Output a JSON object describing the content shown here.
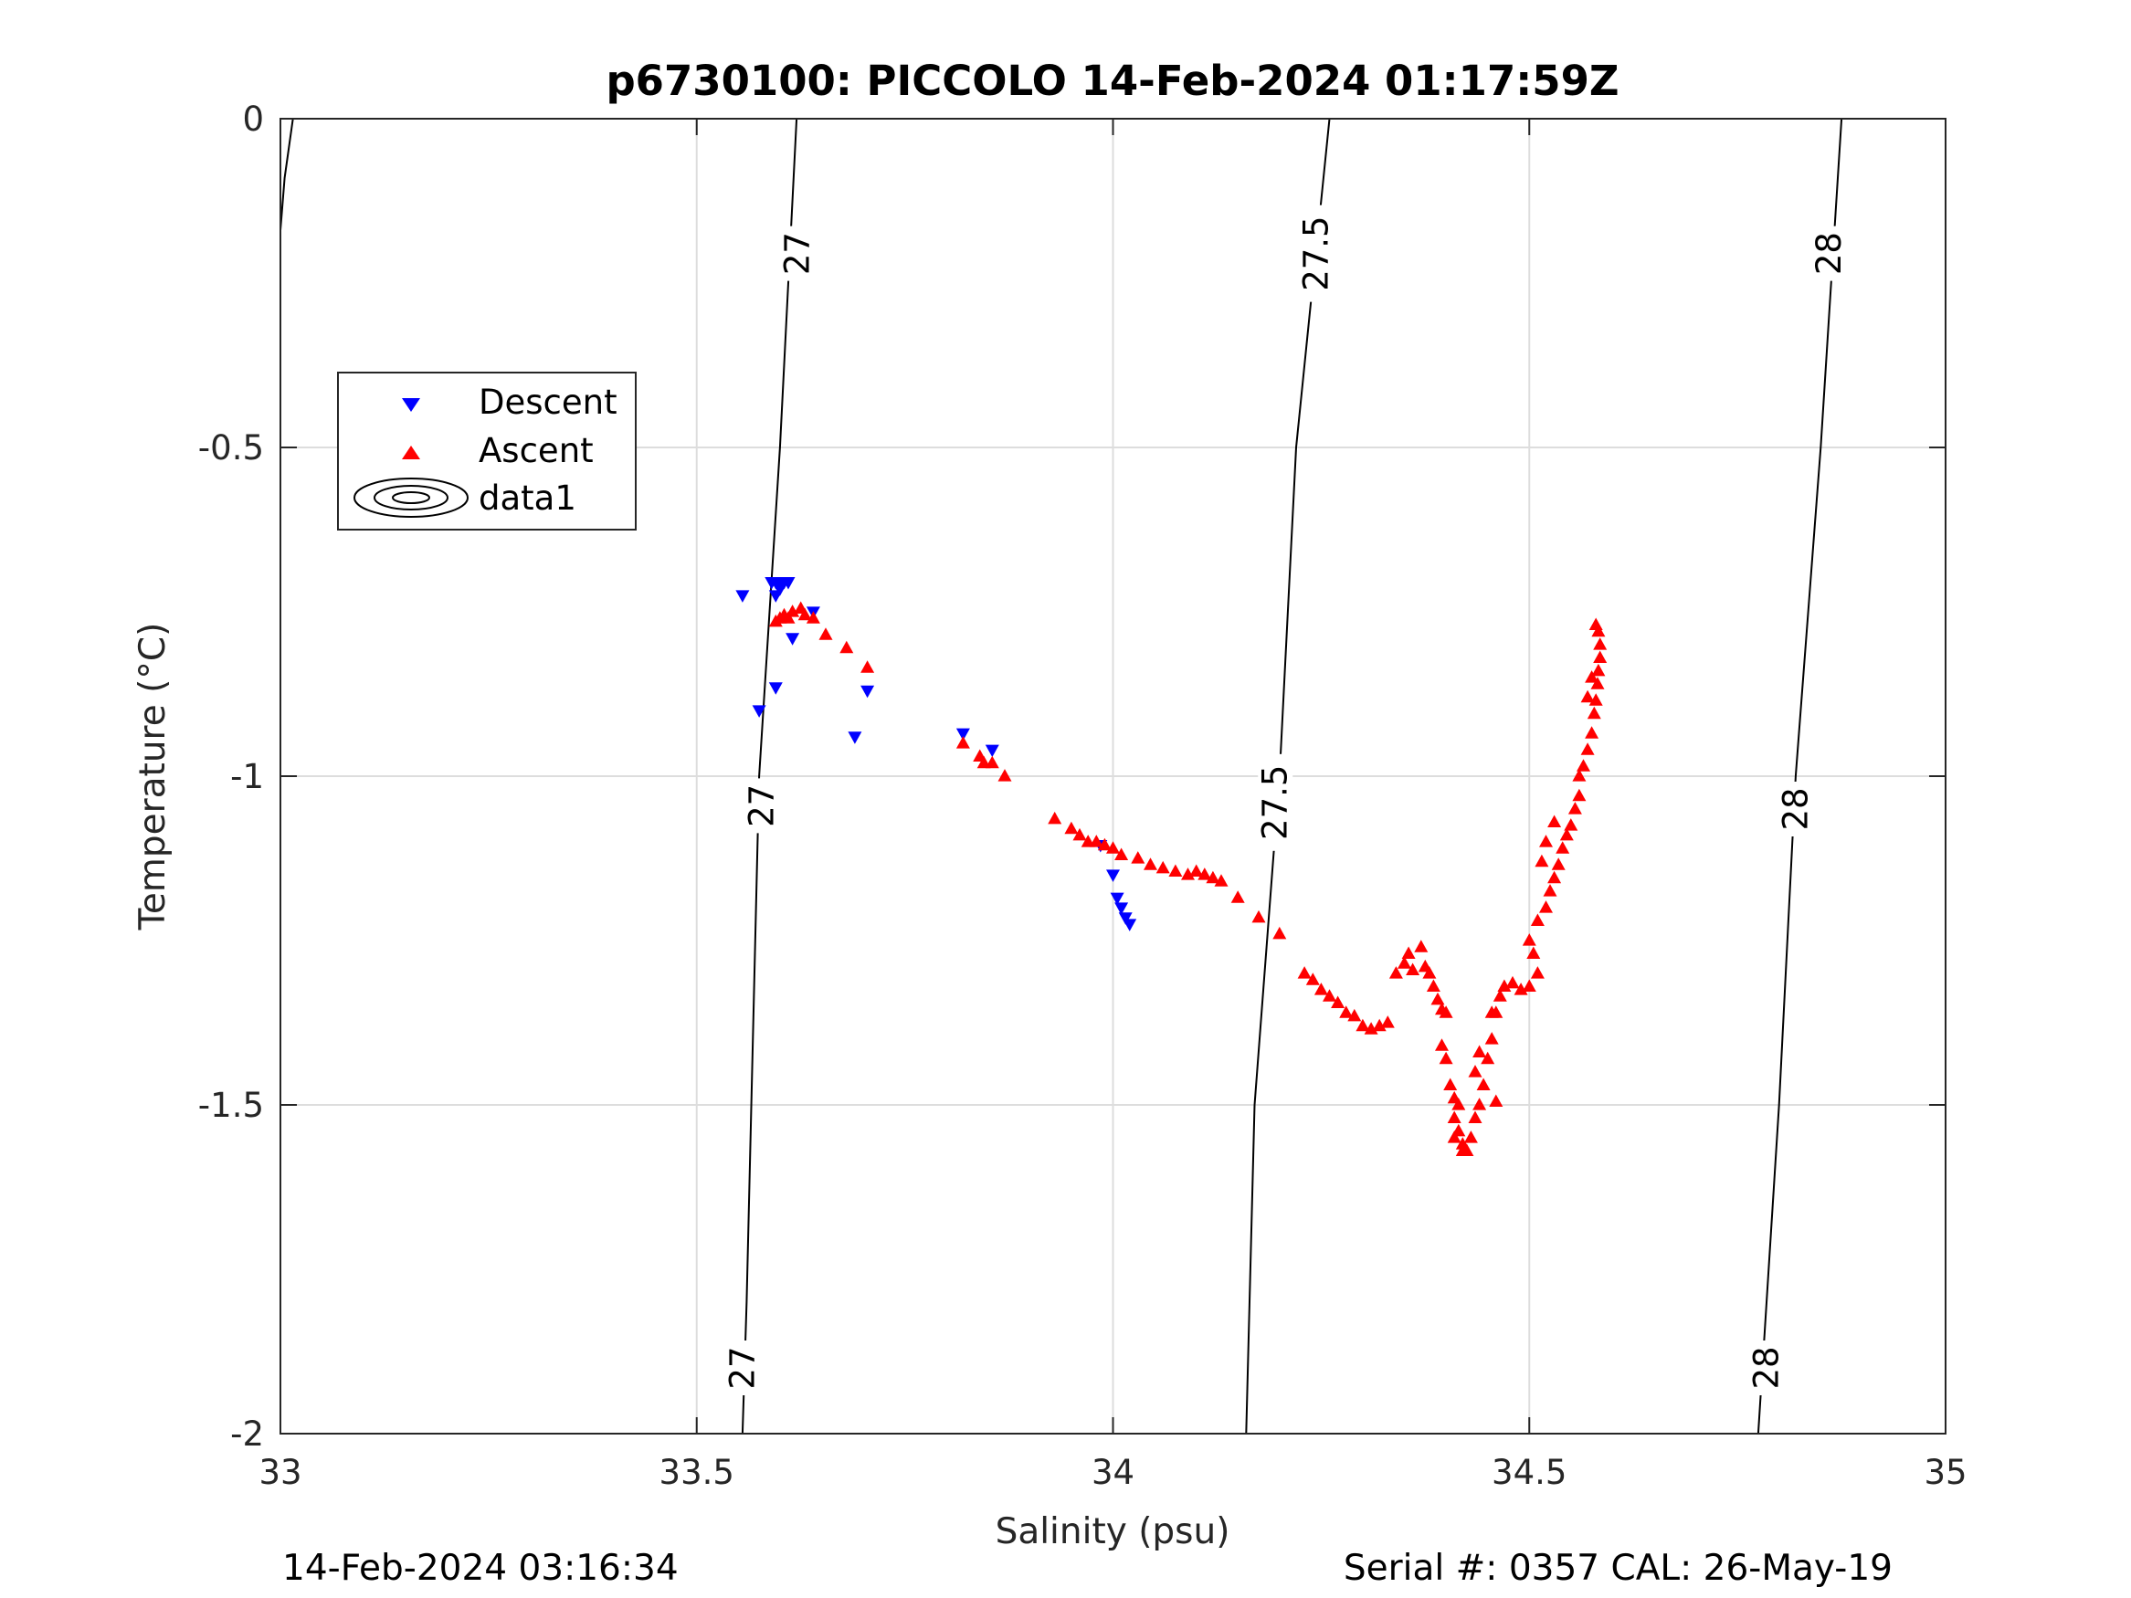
{
  "chart_data": {
    "type": "scatter",
    "title": "p6730100: PICCOLO 14-Feb-2024 01:17:59Z",
    "xlabel": "Salinity (psu)",
    "ylabel": "Temperature (°C)",
    "xlim": [
      33,
      35
    ],
    "ylim": [
      -2,
      0
    ],
    "xticks": [
      33,
      33.5,
      34,
      34.5,
      35
    ],
    "xtick_labels": [
      "33",
      "33.5",
      "34",
      "34.5",
      "35"
    ],
    "yticks": [
      -2,
      -1.5,
      -1,
      -0.5,
      0
    ],
    "ytick_labels": [
      "-2",
      "-1.5",
      "-1",
      "-0.5",
      "0"
    ],
    "grid": true,
    "legend_position": "upper-left",
    "legend": [
      "Descent",
      "Ascent",
      "data1"
    ],
    "colors": {
      "descent": "#0000ff",
      "ascent": "#ff0000",
      "contour": "#000000",
      "grid": "#dddddd"
    },
    "series": [
      {
        "name": "Descent",
        "marker": "triangle-down",
        "color": "#0000ff",
        "points": [
          [
            33.555,
            -0.725
          ],
          [
            33.59,
            -0.705
          ],
          [
            33.595,
            -0.705
          ],
          [
            33.6,
            -0.71
          ],
          [
            33.605,
            -0.705
          ],
          [
            33.61,
            -0.705
          ],
          [
            33.595,
            -0.725
          ],
          [
            33.6,
            -0.715
          ],
          [
            33.615,
            -0.79
          ],
          [
            33.64,
            -0.75
          ],
          [
            33.595,
            -0.865
          ],
          [
            33.575,
            -0.9
          ],
          [
            33.69,
            -0.94
          ],
          [
            33.705,
            -0.87
          ],
          [
            33.82,
            -0.935
          ],
          [
            33.855,
            -0.96
          ],
          [
            33.985,
            -1.105
          ],
          [
            34.0,
            -1.15
          ],
          [
            34.005,
            -1.185
          ],
          [
            34.01,
            -1.2
          ],
          [
            34.015,
            -1.215
          ],
          [
            34.02,
            -1.225
          ]
        ]
      },
      {
        "name": "Ascent",
        "marker": "triangle-up",
        "color": "#ff0000",
        "points": [
          [
            33.595,
            -0.765
          ],
          [
            33.6,
            -0.76
          ],
          [
            33.605,
            -0.755
          ],
          [
            33.61,
            -0.76
          ],
          [
            33.615,
            -0.75
          ],
          [
            33.625,
            -0.745
          ],
          [
            33.63,
            -0.755
          ],
          [
            33.64,
            -0.76
          ],
          [
            33.655,
            -0.785
          ],
          [
            33.68,
            -0.805
          ],
          [
            33.705,
            -0.835
          ],
          [
            33.82,
            -0.95
          ],
          [
            33.84,
            -0.97
          ],
          [
            33.845,
            -0.98
          ],
          [
            33.855,
            -0.98
          ],
          [
            33.87,
            -1.0
          ],
          [
            33.93,
            -1.065
          ],
          [
            33.95,
            -1.08
          ],
          [
            33.96,
            -1.09
          ],
          [
            33.97,
            -1.1
          ],
          [
            33.98,
            -1.1
          ],
          [
            33.99,
            -1.105
          ],
          [
            34.0,
            -1.11
          ],
          [
            34.01,
            -1.12
          ],
          [
            34.03,
            -1.125
          ],
          [
            34.045,
            -1.135
          ],
          [
            34.06,
            -1.14
          ],
          [
            34.075,
            -1.145
          ],
          [
            34.09,
            -1.15
          ],
          [
            34.1,
            -1.145
          ],
          [
            34.11,
            -1.15
          ],
          [
            34.12,
            -1.155
          ],
          [
            34.13,
            -1.16
          ],
          [
            34.15,
            -1.185
          ],
          [
            34.175,
            -1.215
          ],
          [
            34.2,
            -1.24
          ],
          [
            34.23,
            -1.3
          ],
          [
            34.24,
            -1.31
          ],
          [
            34.25,
            -1.325
          ],
          [
            34.26,
            -1.335
          ],
          [
            34.27,
            -1.345
          ],
          [
            34.28,
            -1.36
          ],
          [
            34.29,
            -1.365
          ],
          [
            34.3,
            -1.38
          ],
          [
            34.31,
            -1.385
          ],
          [
            34.32,
            -1.38
          ],
          [
            34.33,
            -1.375
          ],
          [
            34.34,
            -1.3
          ],
          [
            34.35,
            -1.285
          ],
          [
            34.355,
            -1.27
          ],
          [
            34.36,
            -1.295
          ],
          [
            34.37,
            -1.26
          ],
          [
            34.375,
            -1.29
          ],
          [
            34.38,
            -1.3
          ],
          [
            34.385,
            -1.32
          ],
          [
            34.39,
            -1.34
          ],
          [
            34.395,
            -1.355
          ],
          [
            34.4,
            -1.36
          ],
          [
            34.395,
            -1.41
          ],
          [
            34.4,
            -1.43
          ],
          [
            34.405,
            -1.47
          ],
          [
            34.41,
            -1.49
          ],
          [
            34.41,
            -1.52
          ],
          [
            34.415,
            -1.54
          ],
          [
            34.42,
            -1.56
          ],
          [
            34.425,
            -1.57
          ],
          [
            34.43,
            -1.55
          ],
          [
            34.435,
            -1.52
          ],
          [
            34.44,
            -1.5
          ],
          [
            34.445,
            -1.47
          ],
          [
            34.45,
            -1.43
          ],
          [
            34.455,
            -1.4
          ],
          [
            34.46,
            -1.36
          ],
          [
            34.465,
            -1.335
          ],
          [
            34.47,
            -1.32
          ],
          [
            34.48,
            -1.315
          ],
          [
            34.49,
            -1.325
          ],
          [
            34.5,
            -1.32
          ],
          [
            34.51,
            -1.3
          ],
          [
            34.505,
            -1.27
          ],
          [
            34.5,
            -1.25
          ],
          [
            34.51,
            -1.22
          ],
          [
            34.52,
            -1.2
          ],
          [
            34.525,
            -1.175
          ],
          [
            34.53,
            -1.155
          ],
          [
            34.535,
            -1.135
          ],
          [
            34.54,
            -1.11
          ],
          [
            34.545,
            -1.09
          ],
          [
            34.55,
            -1.075
          ],
          [
            34.555,
            -1.05
          ],
          [
            34.56,
            -1.03
          ],
          [
            34.56,
            -1.0
          ],
          [
            34.565,
            -0.985
          ],
          [
            34.57,
            -0.96
          ],
          [
            34.575,
            -0.935
          ],
          [
            34.578,
            -0.905
          ],
          [
            34.58,
            -0.885
          ],
          [
            34.582,
            -0.86
          ],
          [
            34.583,
            -0.84
          ],
          [
            34.585,
            -0.82
          ],
          [
            34.585,
            -0.8
          ],
          [
            34.583,
            -0.78
          ],
          [
            34.58,
            -0.77
          ],
          [
            34.575,
            -0.85
          ],
          [
            34.57,
            -0.88
          ],
          [
            34.52,
            -1.1
          ],
          [
            34.515,
            -1.13
          ],
          [
            34.53,
            -1.07
          ],
          [
            34.46,
            -1.495
          ],
          [
            34.455,
            -1.36
          ],
          [
            34.42,
            -1.57
          ],
          [
            34.41,
            -1.55
          ],
          [
            34.415,
            -1.5
          ],
          [
            34.435,
            -1.45
          ],
          [
            34.44,
            -1.42
          ]
        ]
      }
    ],
    "contours": [
      {
        "level": "27",
        "points": [
          [
            33.555,
            -2.0
          ],
          [
            33.56,
            -1.8
          ],
          [
            33.575,
            -1.0
          ],
          [
            33.6,
            -0.5
          ],
          [
            33.62,
            0.0
          ]
        ],
        "labels": [
          {
            "text": "27",
            "x": 33.555,
            "y": -1.9
          },
          {
            "text": "27",
            "x": 33.578,
            "y": -1.045
          },
          {
            "text": "27",
            "x": 33.621,
            "y": -0.205
          }
        ]
      },
      {
        "level": "27.5",
        "points": [
          [
            34.16,
            -2.0
          ],
          [
            34.17,
            -1.5
          ],
          [
            34.2,
            -1.0
          ],
          [
            34.22,
            -0.5
          ],
          [
            34.26,
            0.0
          ]
        ],
        "labels": [
          {
            "text": "27.5",
            "x": 34.195,
            "y": -1.04
          },
          {
            "text": "27.5",
            "x": 34.244,
            "y": -0.205
          }
        ]
      },
      {
        "level": "28",
        "points": [
          [
            34.775,
            -2.0
          ],
          [
            34.8,
            -1.5
          ],
          [
            34.82,
            -1.0
          ],
          [
            34.85,
            -0.5
          ],
          [
            34.875,
            0.0
          ]
        ],
        "labels": [
          {
            "text": "28",
            "x": 34.785,
            "y": -1.9
          },
          {
            "text": "28",
            "x": 34.82,
            "y": -1.05
          },
          {
            "text": "28",
            "x": 34.86,
            "y": -0.205
          }
        ]
      },
      {
        "level": "26.5",
        "points": [
          [
            33.0,
            -0.17
          ],
          [
            33.005,
            -0.09
          ],
          [
            33.015,
            0.0
          ]
        ],
        "labels": []
      }
    ]
  },
  "footer": {
    "timestamp": "14-Feb-2024 03:16:34",
    "serial": "Serial #: 0357  CAL: 26-May-19"
  }
}
